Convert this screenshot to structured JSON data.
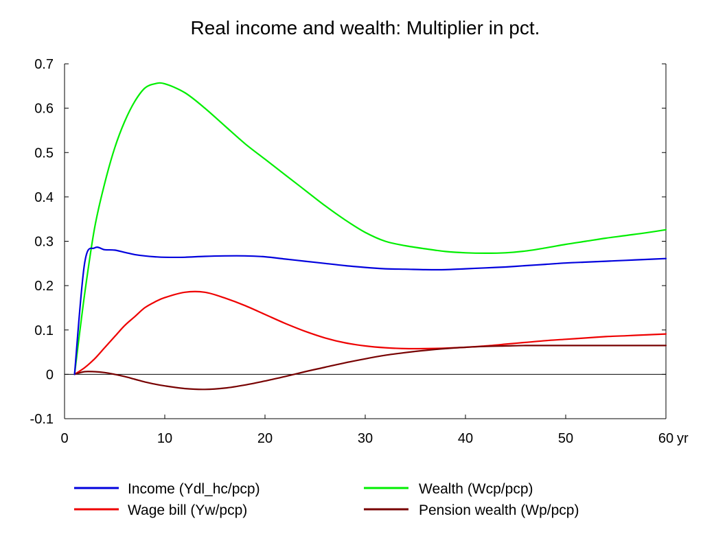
{
  "chart_data": {
    "type": "line",
    "title": "Real income and wealth: Multiplier in pct.",
    "xlabel": "",
    "ylabel": "",
    "x_unit_label": "yr",
    "xlim": [
      0,
      60
    ],
    "ylim": [
      -0.1,
      0.7
    ],
    "x_ticks": [
      0,
      10,
      20,
      30,
      40,
      50,
      60
    ],
    "y_ticks": [
      -0.1,
      0,
      0.1,
      0.2,
      0.3,
      0.4,
      0.5,
      0.6,
      0.7
    ],
    "x_tick_labels": [
      "0",
      "10",
      "20",
      "30",
      "40",
      "50",
      "60"
    ],
    "y_tick_labels": [
      "-0.1",
      "0",
      "0.1",
      "0.2",
      "0.3",
      "0.4",
      "0.5",
      "0.6",
      "0.7"
    ],
    "grid": false,
    "zero_line": true,
    "legend_position": "bottom",
    "x": [
      1,
      2,
      3,
      4,
      5,
      6,
      7,
      8,
      9,
      10,
      12,
      14,
      16,
      18,
      20,
      22,
      24,
      26,
      28,
      30,
      32,
      34,
      36,
      38,
      40,
      42,
      44,
      46,
      48,
      50,
      52,
      54,
      56,
      58,
      60
    ],
    "series": [
      {
        "name": "Income (Ydl_hc/pcp)",
        "color": "#0000dd",
        "values": [
          0.0,
          0.25,
          0.285,
          0.281,
          0.28,
          0.275,
          0.27,
          0.267,
          0.265,
          0.264,
          0.264,
          0.266,
          0.267,
          0.267,
          0.265,
          0.26,
          0.255,
          0.25,
          0.245,
          0.241,
          0.238,
          0.237,
          0.236,
          0.236,
          0.238,
          0.24,
          0.242,
          0.245,
          0.248,
          0.251,
          0.253,
          0.255,
          0.257,
          0.259,
          0.261
        ]
      },
      {
        "name": "Wealth (Wcp/pcp)",
        "color": "#00ee00",
        "values": [
          0.0,
          0.18,
          0.33,
          0.43,
          0.51,
          0.57,
          0.615,
          0.645,
          0.655,
          0.655,
          0.635,
          0.6,
          0.56,
          0.52,
          0.485,
          0.45,
          0.415,
          0.38,
          0.348,
          0.32,
          0.3,
          0.29,
          0.283,
          0.277,
          0.274,
          0.273,
          0.274,
          0.278,
          0.285,
          0.293,
          0.3,
          0.307,
          0.313,
          0.319,
          0.326
        ]
      },
      {
        "name": "Wage bill (Yw/pcp)",
        "color": "#ee0000",
        "values": [
          0.0,
          0.015,
          0.035,
          0.06,
          0.085,
          0.11,
          0.13,
          0.15,
          0.163,
          0.173,
          0.185,
          0.185,
          0.172,
          0.155,
          0.135,
          0.115,
          0.097,
          0.082,
          0.071,
          0.064,
          0.06,
          0.058,
          0.058,
          0.059,
          0.061,
          0.064,
          0.068,
          0.072,
          0.076,
          0.079,
          0.082,
          0.085,
          0.087,
          0.089,
          0.091
        ]
      },
      {
        "name": "Pension wealth (Wp/pcp)",
        "color": "#770000",
        "values": [
          0.0,
          0.006,
          0.006,
          0.004,
          0.0,
          -0.005,
          -0.011,
          -0.017,
          -0.022,
          -0.026,
          -0.032,
          -0.034,
          -0.031,
          -0.024,
          -0.015,
          -0.005,
          0.006,
          0.016,
          0.026,
          0.035,
          0.043,
          0.049,
          0.054,
          0.058,
          0.061,
          0.063,
          0.064,
          0.065,
          0.065,
          0.065,
          0.065,
          0.065,
          0.065,
          0.065,
          0.065
        ]
      }
    ]
  }
}
